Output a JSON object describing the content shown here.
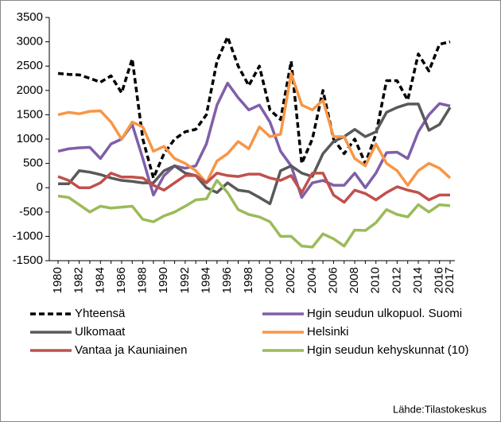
{
  "chart_data": {
    "type": "line",
    "categories": [
      "1980",
      null,
      "1982",
      null,
      "1984",
      null,
      "1986",
      null,
      "1988",
      null,
      "1990",
      null,
      "1992",
      null,
      "1994",
      null,
      "1996",
      null,
      "1998",
      null,
      "2000",
      null,
      "2002",
      null,
      "2004",
      null,
      "2006",
      null,
      "2008",
      null,
      "2010",
      null,
      "2012",
      null,
      "2014",
      null,
      "2016",
      "2017"
    ],
    "ylim": [
      -1500,
      3500
    ],
    "yticks": [
      -1500,
      -1000,
      -500,
      0,
      500,
      1000,
      1500,
      2000,
      2500,
      3000,
      3500
    ],
    "grid": false,
    "series": [
      {
        "name": "Yhteensä",
        "color": "#000000",
        "line_style": "dashed",
        "values": [
          2350,
          2330,
          2320,
          2250,
          2170,
          2300,
          1950,
          2650,
          1000,
          200,
          700,
          1000,
          1150,
          1200,
          1500,
          2600,
          3100,
          2500,
          2100,
          2500,
          1600,
          1400,
          2600,
          500,
          1000,
          2000,
          1000,
          700,
          1000,
          500,
          1100,
          2200,
          2200,
          1800,
          2750,
          2400,
          2950,
          3000
        ]
      },
      {
        "name": "Hgin seudun ulkopuol. Suomi",
        "color": "#7f5fa8",
        "line_style": "solid",
        "values": [
          750,
          800,
          820,
          830,
          600,
          900,
          1000,
          1300,
          600,
          -150,
          250,
          450,
          400,
          450,
          900,
          1700,
          2150,
          1850,
          1600,
          1700,
          1350,
          750,
          450,
          -200,
          100,
          150,
          50,
          50,
          300,
          0,
          300,
          720,
          730,
          600,
          1150,
          1500,
          1730,
          1680
        ]
      },
      {
        "name": "Ulkomaat",
        "color": "#595959",
        "line_style": "solid",
        "values": [
          80,
          80,
          350,
          320,
          270,
          200,
          150,
          130,
          100,
          100,
          350,
          450,
          300,
          250,
          0,
          -100,
          100,
          -50,
          -80,
          -200,
          -330,
          350,
          450,
          300,
          230,
          700,
          950,
          1050,
          1200,
          1050,
          1150,
          1550,
          1650,
          1720,
          1720,
          1180,
          1300,
          1650
        ]
      },
      {
        "name": "Helsinki",
        "color": "#f79646",
        "line_style": "solid",
        "values": [
          1500,
          1550,
          1520,
          1570,
          1580,
          1350,
          1000,
          1350,
          1250,
          750,
          850,
          600,
          500,
          350,
          100,
          550,
          700,
          950,
          800,
          1250,
          1050,
          1100,
          2350,
          1700,
          1600,
          1800,
          1050,
          1050,
          600,
          450,
          900,
          500,
          350,
          50,
          350,
          500,
          400,
          200
        ]
      },
      {
        "name": "Vantaa ja Kauniainen",
        "color": "#c0504d",
        "line_style": "solid",
        "values": [
          230,
          150,
          0,
          0,
          100,
          300,
          220,
          220,
          200,
          50,
          -50,
          100,
          250,
          250,
          100,
          300,
          250,
          230,
          280,
          280,
          200,
          150,
          250,
          -100,
          300,
          300,
          -150,
          -300,
          -50,
          -120,
          -250,
          -100,
          20,
          -50,
          -100,
          -250,
          -150,
          -150
        ]
      },
      {
        "name": "Hgin seudun kehyskunnat (10)",
        "color": "#9bbb59",
        "line_style": "solid",
        "values": [
          -170,
          -200,
          -350,
          -500,
          -380,
          -420,
          -400,
          -380,
          -650,
          -700,
          -580,
          -500,
          -380,
          -250,
          -230,
          150,
          -100,
          -450,
          -550,
          -600,
          -700,
          -1000,
          -1000,
          -1200,
          -1220,
          -950,
          -1050,
          -1200,
          -870,
          -880,
          -720,
          -450,
          -550,
          -600,
          -350,
          -500,
          -350,
          -370
        ]
      }
    ],
    "source": "Lähde:Tilastokeskus"
  }
}
